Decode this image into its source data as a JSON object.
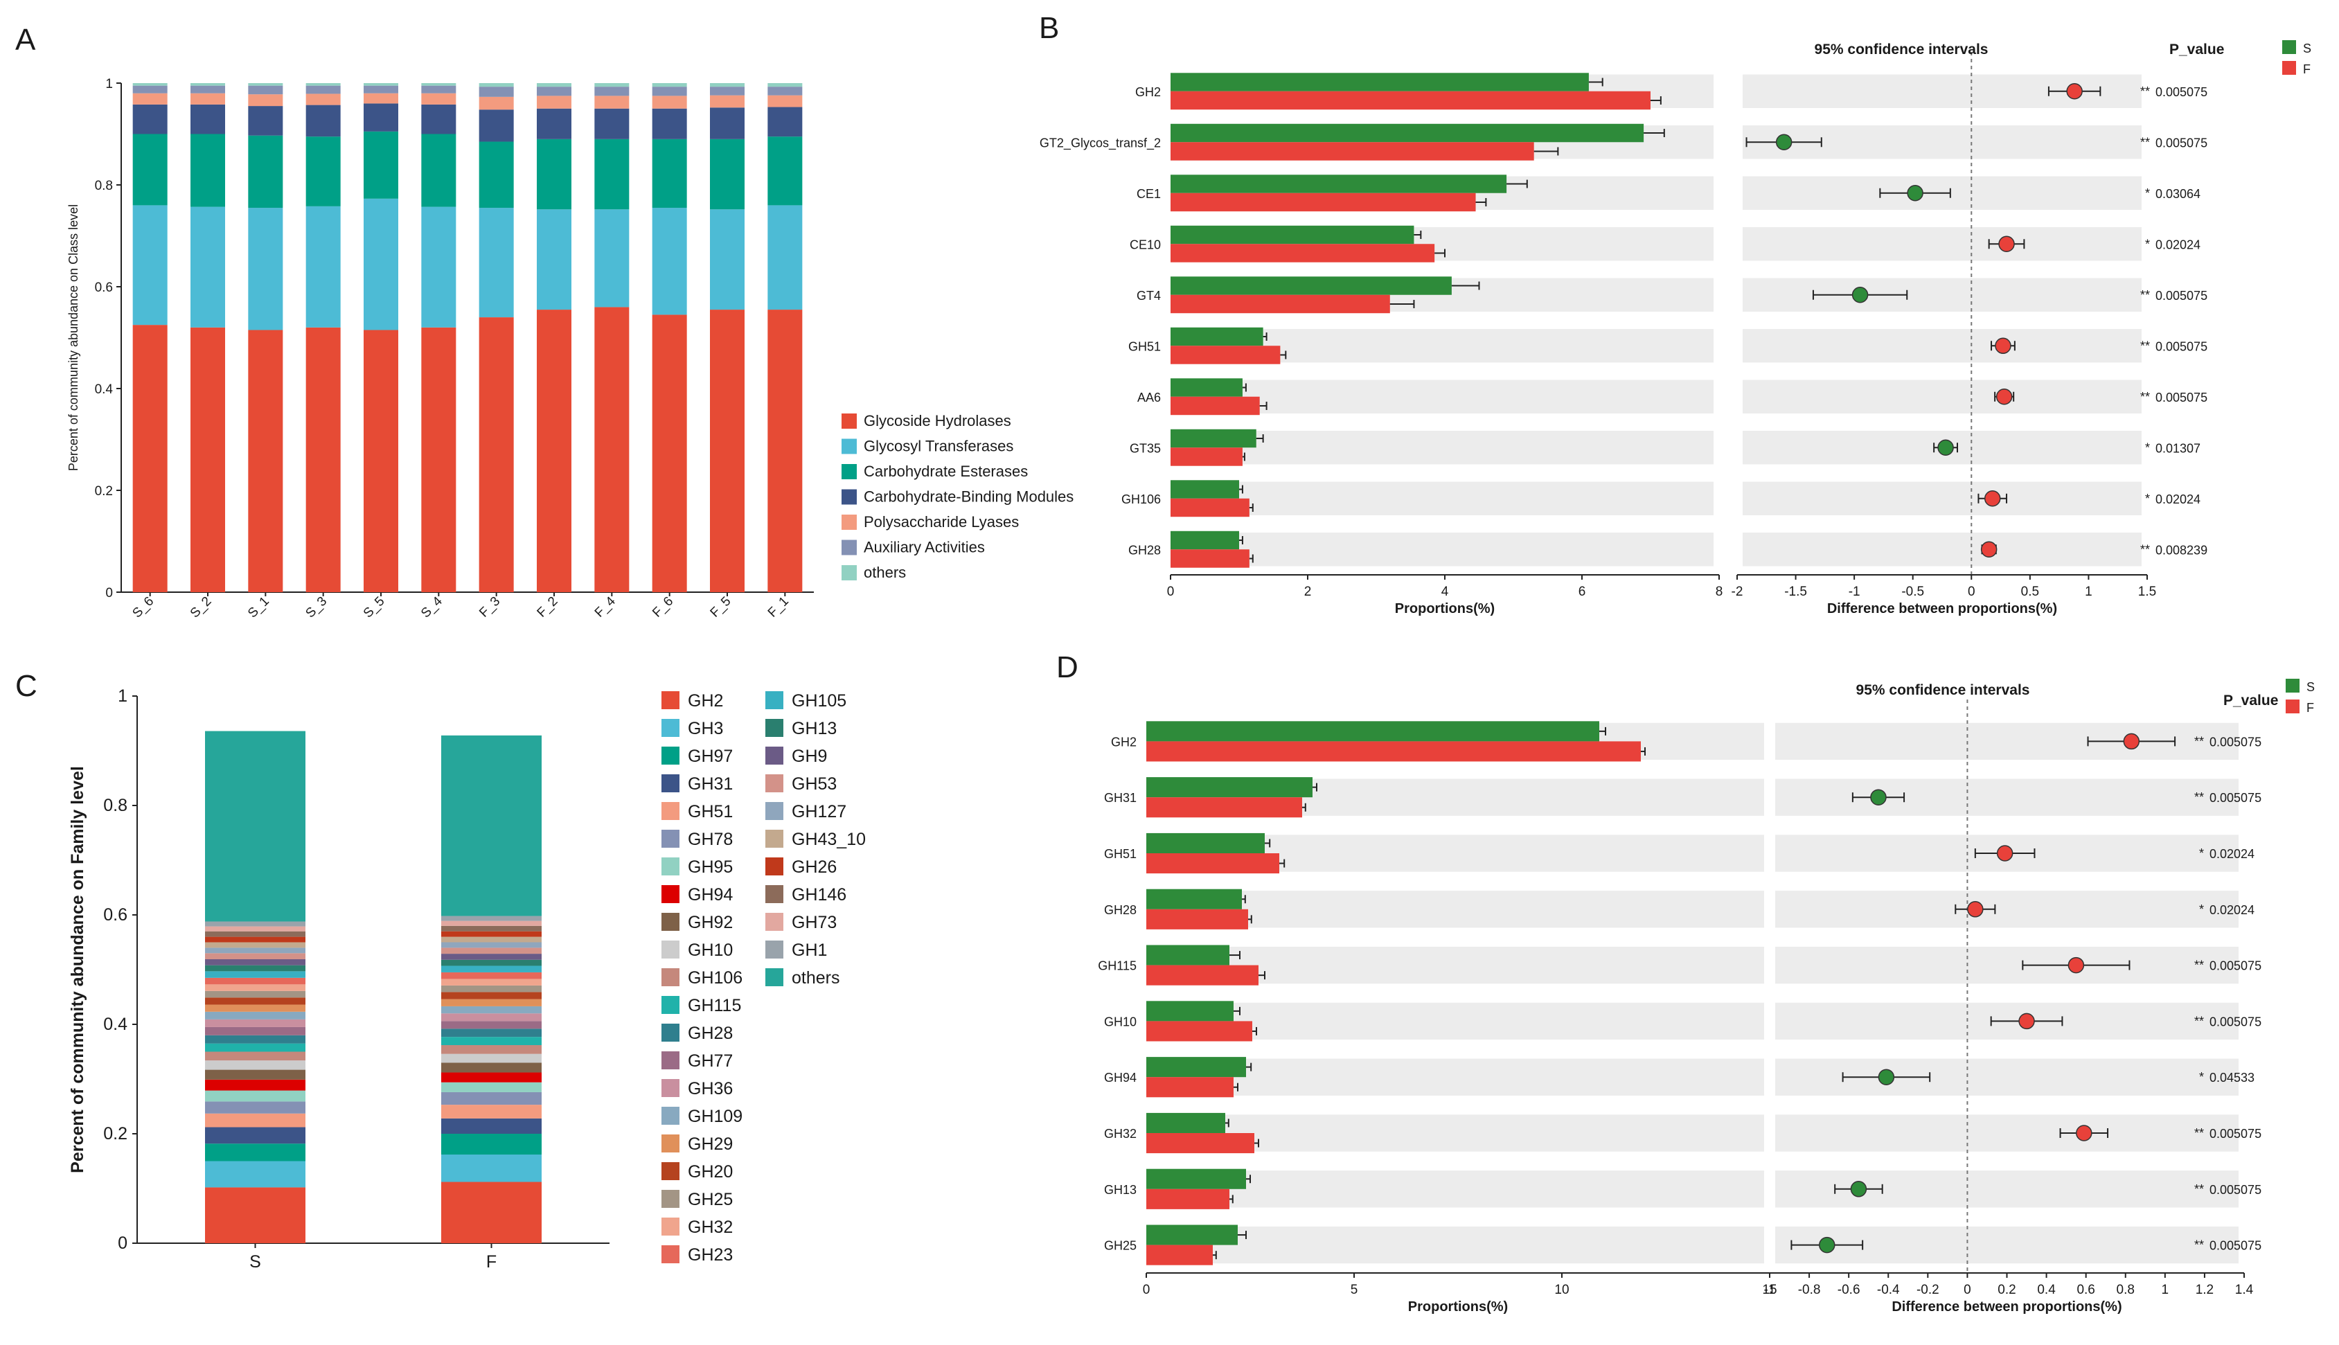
{
  "panels": {
    "A": {
      "letter": "A",
      "chart_data": {
        "type": "bar",
        "stacked": true,
        "ylabel": "Percent of community abundance on Class level",
        "ylim": [
          0,
          1
        ],
        "yticks": [
          "0",
          "0.2",
          "0.4",
          "0.6",
          "0.8",
          "1"
        ],
        "categories": [
          "S_6",
          "S_2",
          "S_1",
          "S_3",
          "S_5",
          "S_4",
          "F_3",
          "F_2",
          "F_4",
          "F_6",
          "F_5",
          "F_1"
        ],
        "series": [
          {
            "name": "Glycoside Hydrolases",
            "color": "#e64b35",
            "values": [
              0.525,
              0.52,
              0.515,
              0.52,
              0.515,
              0.52,
              0.54,
              0.555,
              0.56,
              0.545,
              0.555,
              0.555
            ]
          },
          {
            "name": "Glycosyl Transferases",
            "color": "#4dbbd5",
            "values": [
              0.235,
              0.237,
              0.24,
              0.238,
              0.258,
              0.237,
              0.215,
              0.197,
              0.192,
              0.21,
              0.197,
              0.205
            ]
          },
          {
            "name": "Carbohydrate Esterases",
            "color": "#00a087",
            "values": [
              0.14,
              0.143,
              0.142,
              0.137,
              0.132,
              0.143,
              0.13,
              0.138,
              0.138,
              0.135,
              0.138,
              0.135
            ]
          },
          {
            "name": "Carbohydrate-Binding Modules",
            "color": "#3c5488",
            "values": [
              0.058,
              0.058,
              0.058,
              0.062,
              0.055,
              0.058,
              0.063,
              0.06,
              0.06,
              0.06,
              0.062,
              0.058
            ]
          },
          {
            "name": "Polysaccharide Lyases",
            "color": "#f39b7f",
            "values": [
              0.022,
              0.022,
              0.023,
              0.022,
              0.02,
              0.022,
              0.025,
              0.025,
              0.025,
              0.025,
              0.024,
              0.023
            ]
          },
          {
            "name": "Auxiliary Activities",
            "color": "#8491b4",
            "values": [
              0.015,
              0.015,
              0.017,
              0.016,
              0.015,
              0.015,
              0.02,
              0.018,
              0.018,
              0.018,
              0.017,
              0.017
            ]
          },
          {
            "name": "others",
            "color": "#91d1c2",
            "values": [
              0.005,
              0.005,
              0.005,
              0.005,
              0.005,
              0.005,
              0.007,
              0.007,
              0.007,
              0.007,
              0.007,
              0.007
            ]
          }
        ]
      }
    },
    "B": {
      "letter": "B",
      "ci_title": "95% confidence intervals",
      "p_header": "P_value",
      "legend": [
        {
          "name": "S",
          "color": "#2e8b3a"
        },
        {
          "name": "F",
          "color": "#e8413a"
        }
      ],
      "chart_data": {
        "type": "bar",
        "orientation": "horizontal",
        "xlabel": "Proportions(%)",
        "xlim": [
          0,
          8
        ],
        "xticks": [
          "0",
          "2",
          "4",
          "6",
          "8"
        ],
        "diff_xlabel": "Difference between proportions(%)",
        "diff_xlim": [
          -2,
          1.5
        ],
        "diff_xticks": [
          "-2",
          "-1.5",
          "-1",
          "-0.5",
          "0",
          "0.5",
          "1",
          "1.5"
        ],
        "categories": [
          "GH2",
          "GT2_Glycos_transf_2",
          "CE1",
          "CE10",
          "GT4",
          "GH51",
          "AA6",
          "GT35",
          "GH106",
          "GH28"
        ],
        "series": [
          {
            "name": "S",
            "values": [
              6.1,
              6.9,
              4.9,
              3.55,
              4.1,
              1.35,
              1.05,
              1.25,
              1.0,
              1.0
            ],
            "err": [
              0.2,
              0.3,
              0.3,
              0.1,
              0.4,
              0.05,
              0.05,
              0.1,
              0.05,
              0.05
            ]
          },
          {
            "name": "F",
            "values": [
              7.0,
              5.3,
              4.45,
              3.85,
              3.2,
              1.6,
              1.3,
              1.05,
              1.15,
              1.15
            ],
            "err": [
              0.15,
              0.35,
              0.15,
              0.15,
              0.35,
              0.08,
              0.1,
              0.03,
              0.05,
              0.05
            ]
          }
        ],
        "diff": [
          0.88,
          -1.6,
          -0.48,
          0.3,
          -0.95,
          0.27,
          0.28,
          -0.22,
          0.18,
          0.15
        ],
        "diff_err": [
          0.22,
          0.32,
          0.3,
          0.15,
          0.4,
          0.1,
          0.08,
          0.1,
          0.12,
          0.06
        ],
        "p_values": [
          "0.005075",
          "0.005075",
          "0.03064",
          "0.02024",
          "0.005075",
          "0.005075",
          "0.005075",
          "0.01307",
          "0.02024",
          "0.008239"
        ],
        "stars": [
          "**",
          "**",
          "*",
          "*",
          "**",
          "**",
          "**",
          "*",
          "*",
          "**"
        ]
      }
    },
    "C": {
      "letter": "C",
      "chart_data": {
        "type": "bar",
        "stacked": true,
        "ylabel": "Percent of community abundance on Family level",
        "ylim": [
          0,
          1
        ],
        "yticks": [
          "0",
          "0.2",
          "0.4",
          "0.6",
          "0.8",
          "1"
        ],
        "categories": [
          "S",
          "F"
        ],
        "series": [
          {
            "name": "GH2",
            "color": "#e64b35",
            "values": [
              0.102,
              0.112
            ]
          },
          {
            "name": "GH3",
            "color": "#4dbbd5",
            "values": [
              0.048,
              0.05
            ]
          },
          {
            "name": "GH97",
            "color": "#00a087",
            "values": [
              0.032,
              0.038
            ]
          },
          {
            "name": "GH31",
            "color": "#3c5488",
            "values": [
              0.03,
              0.028
            ]
          },
          {
            "name": "GH51",
            "color": "#f39b7f",
            "values": [
              0.025,
              0.025
            ]
          },
          {
            "name": "GH78",
            "color": "#8491b4",
            "values": [
              0.022,
              0.023
            ]
          },
          {
            "name": "GH95",
            "color": "#91d1c2",
            "values": [
              0.02,
              0.018
            ]
          },
          {
            "name": "GH94",
            "color": "#dc0000",
            "values": [
              0.02,
              0.018
            ]
          },
          {
            "name": "GH92",
            "color": "#7e6148",
            "values": [
              0.018,
              0.018
            ]
          },
          {
            "name": "GH10",
            "color": "#cccccc",
            "values": [
              0.017,
              0.016
            ]
          },
          {
            "name": "GH106",
            "color": "#c5887c",
            "values": [
              0.016,
              0.016
            ]
          },
          {
            "name": "GH115",
            "color": "#20b2aa",
            "values": [
              0.015,
              0.015
            ]
          },
          {
            "name": "GH28",
            "color": "#2f7f8e",
            "values": [
              0.015,
              0.015
            ]
          },
          {
            "name": "GH77",
            "color": "#9b6b86",
            "values": [
              0.015,
              0.014
            ]
          },
          {
            "name": "GH36",
            "color": "#c98f9f",
            "values": [
              0.014,
              0.014
            ]
          },
          {
            "name": "GH109",
            "color": "#88a9c0",
            "values": [
              0.014,
              0.013
            ]
          },
          {
            "name": "GH29",
            "color": "#e0905a",
            "values": [
              0.013,
              0.013
            ]
          },
          {
            "name": "GH20",
            "color": "#b5431f",
            "values": [
              0.013,
              0.013
            ]
          },
          {
            "name": "GH25",
            "color": "#a39585",
            "values": [
              0.012,
              0.012
            ]
          },
          {
            "name": "GH32",
            "color": "#f0a58d",
            "values": [
              0.012,
              0.012
            ]
          },
          {
            "name": "GH23",
            "color": "#e6685a",
            "values": [
              0.012,
              0.012
            ]
          },
          {
            "name": "GH105",
            "color": "#38b0c2",
            "values": [
              0.012,
              0.012
            ]
          },
          {
            "name": "GH13",
            "color": "#2a7f6f",
            "values": [
              0.011,
              0.011
            ]
          },
          {
            "name": "GH9",
            "color": "#6b5b86",
            "values": [
              0.011,
              0.011
            ]
          },
          {
            "name": "GH53",
            "color": "#d39289",
            "values": [
              0.011,
              0.011
            ]
          },
          {
            "name": "GH127",
            "color": "#8fa6bd",
            "values": [
              0.01,
              0.01
            ]
          },
          {
            "name": "GH43_10",
            "color": "#c3a98e",
            "values": [
              0.01,
              0.01
            ]
          },
          {
            "name": "GH26",
            "color": "#c0391b",
            "values": [
              0.01,
              0.01
            ]
          },
          {
            "name": "GH146",
            "color": "#8c6b5a",
            "values": [
              0.01,
              0.01
            ]
          },
          {
            "name": "GH73",
            "color": "#e2a8a0",
            "values": [
              0.009,
              0.009
            ]
          },
          {
            "name": "GH1",
            "color": "#99a3ab",
            "values": [
              0.009,
              0.009
            ]
          },
          {
            "name": "others",
            "color": "#26a69a",
            "values": [
              0.348,
              0.33
            ]
          }
        ]
      }
    },
    "D": {
      "letter": "D",
      "ci_title": "95% confidence intervals",
      "p_header": "P_value",
      "legend": [
        {
          "name": "S",
          "color": "#2e8b3a"
        },
        {
          "name": "F",
          "color": "#e8413a"
        }
      ],
      "chart_data": {
        "type": "bar",
        "orientation": "horizontal",
        "xlabel": "Proportions(%)",
        "xlim": [
          0,
          15
        ],
        "xticks": [
          "0",
          "5",
          "10",
          "15"
        ],
        "diff_xlabel": "Difference between proportions(%)",
        "diff_xlim": [
          -1,
          1.4
        ],
        "diff_xticks": [
          "-1",
          "-0.8",
          "-0.6",
          "-0.4",
          "-0.2",
          "0",
          "0.2",
          "0.4",
          "0.6",
          "0.8",
          "1",
          "1.2",
          "1.4"
        ],
        "categories": [
          "GH2",
          "GH31",
          "GH51",
          "GH28",
          "GH115",
          "GH10",
          "GH94",
          "GH32",
          "GH13",
          "GH25"
        ],
        "series": [
          {
            "name": "S",
            "values": [
              10.9,
              4.0,
              2.85,
              2.3,
              2.0,
              2.1,
              2.4,
              1.9,
              2.4,
              2.2
            ],
            "err": [
              0.15,
              0.1,
              0.12,
              0.08,
              0.25,
              0.15,
              0.12,
              0.08,
              0.1,
              0.2
            ]
          },
          {
            "name": "F",
            "values": [
              11.9,
              3.75,
              3.2,
              2.45,
              2.7,
              2.55,
              2.1,
              2.6,
              2.0,
              1.6
            ],
            "err": [
              0.1,
              0.08,
              0.12,
              0.08,
              0.15,
              0.1,
              0.1,
              0.1,
              0.08,
              0.08
            ]
          }
        ],
        "diff": [
          0.83,
          -0.45,
          0.19,
          0.04,
          0.55,
          0.3,
          -0.41,
          0.59,
          -0.55,
          -0.71
        ],
        "diff_err": [
          0.22,
          0.13,
          0.15,
          0.1,
          0.27,
          0.18,
          0.22,
          0.12,
          0.12,
          0.18
        ],
        "p_values": [
          "0.005075",
          "0.005075",
          "0.02024",
          "0.02024",
          "0.005075",
          "0.005075",
          "0.04533",
          "0.005075",
          "0.005075",
          "0.005075"
        ],
        "stars": [
          "**",
          "**",
          "*",
          "*",
          "**",
          "**",
          "*",
          "**",
          "**",
          "**"
        ]
      }
    }
  }
}
